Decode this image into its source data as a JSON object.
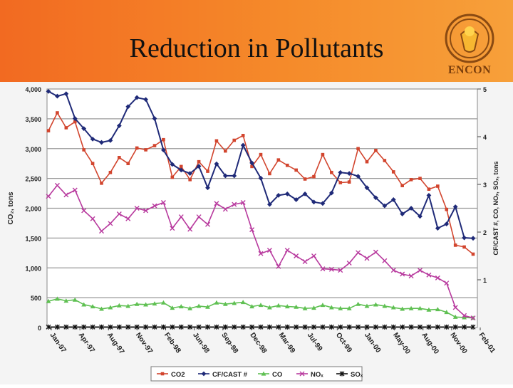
{
  "slide": {
    "title": "Reduction in Pollutants",
    "logo_text": "ENCON",
    "colors": {
      "banner": "#f47b25",
      "background": "#f4f4f4"
    }
  },
  "chart_data": {
    "type": "line",
    "title": "",
    "ylabel": "CO₂, tons",
    "y2label": "CF/CAST #, CO, NOₓ, SOₓ, tons",
    "ylim": [
      0,
      4000
    ],
    "y2lim": [
      0,
      5
    ],
    "yticks": [
      "0",
      "500",
      "1,000",
      "1,500",
      "2,000",
      "2,500",
      "3,000",
      "3,500",
      "4,000"
    ],
    "y2ticks": [
      "1",
      "2",
      "3",
      "4",
      "5"
    ],
    "grid": true,
    "legend": "bottom",
    "xtick_labels": [
      "Jan-97",
      "Apr-97",
      "Aug-97",
      "Nov-97",
      "Feb-98",
      "Jun-98",
      "Sep-98",
      "Dec-98",
      "Mar-99",
      "Jul-99",
      "Oct-99",
      "Jan-00",
      "May-00",
      "Aug-00",
      "Nov-00",
      "Feb-01"
    ],
    "series": [
      {
        "name": "CO2",
        "axis": "left",
        "color": "#d2452e",
        "marker": "square",
        "values": [
          3300,
          3600,
          3350,
          3450,
          2980,
          2750,
          2420,
          2600,
          2850,
          2750,
          3010,
          2980,
          3050,
          3150,
          2520,
          2700,
          2480,
          2780,
          2620,
          3130,
          2960,
          3140,
          3220,
          2700,
          2900,
          2580,
          2810,
          2720,
          2640,
          2490,
          2530,
          2900,
          2600,
          2430,
          2440,
          3000,
          2780,
          2970,
          2800,
          2610,
          2380,
          2480,
          2500,
          2320,
          2370,
          1980,
          1380,
          1350,
          1230
        ]
      },
      {
        "name": "CF/CAST #",
        "axis": "right",
        "color": "#1f2a78",
        "marker": "diamond",
        "values": [
          4.95,
          4.85,
          4.9,
          4.38,
          4.17,
          3.95,
          3.88,
          3.92,
          4.23,
          4.63,
          4.82,
          4.78,
          4.38,
          3.72,
          3.42,
          3.3,
          3.23,
          3.38,
          2.93,
          3.43,
          3.18,
          3.18,
          3.82,
          3.45,
          3.13,
          2.58,
          2.77,
          2.8,
          2.68,
          2.8,
          2.63,
          2.6,
          2.82,
          3.25,
          3.23,
          3.17,
          2.93,
          2.72,
          2.55,
          2.68,
          2.38,
          2.5,
          2.33,
          2.77,
          2.08,
          2.17,
          2.53,
          1.88,
          1.87
        ]
      },
      {
        "name": "CO",
        "axis": "right",
        "color": "#5fc052",
        "marker": "triangle",
        "values": [
          0.55,
          0.6,
          0.56,
          0.58,
          0.48,
          0.44,
          0.39,
          0.42,
          0.46,
          0.45,
          0.49,
          0.48,
          0.5,
          0.52,
          0.41,
          0.44,
          0.4,
          0.45,
          0.43,
          0.52,
          0.49,
          0.51,
          0.53,
          0.44,
          0.47,
          0.42,
          0.46,
          0.44,
          0.43,
          0.4,
          0.41,
          0.47,
          0.42,
          0.4,
          0.4,
          0.49,
          0.45,
          0.48,
          0.45,
          0.42,
          0.39,
          0.4,
          0.4,
          0.37,
          0.38,
          0.32,
          0.22,
          0.21,
          0.2
        ]
      },
      {
        "name": "NOₓ",
        "axis": "right",
        "color": "#b83a9e",
        "marker": "x",
        "values": [
          2.75,
          2.98,
          2.78,
          2.88,
          2.45,
          2.28,
          2.02,
          2.18,
          2.38,
          2.28,
          2.5,
          2.45,
          2.55,
          2.62,
          2.08,
          2.32,
          2.06,
          2.32,
          2.16,
          2.6,
          2.48,
          2.58,
          2.62,
          2.05,
          1.55,
          1.62,
          1.28,
          1.62,
          1.5,
          1.38,
          1.5,
          1.23,
          1.22,
          1.2,
          1.35,
          1.57,
          1.45,
          1.58,
          1.4,
          1.2,
          1.12,
          1.08,
          1.2,
          1.1,
          1.04,
          0.93,
          0.42,
          0.25,
          0.2
        ]
      },
      {
        "name": "SOₓ",
        "axis": "right",
        "color": "#111111",
        "marker": "star",
        "values": [
          0.01,
          0.01,
          0.01,
          0.01,
          0.01,
          0.01,
          0.01,
          0.01,
          0.01,
          0.01,
          0.01,
          0.01,
          0.01,
          0.01,
          0.01,
          0.01,
          0.01,
          0.01,
          0.01,
          0.01,
          0.01,
          0.01,
          0.01,
          0.01,
          0.01,
          0.01,
          0.01,
          0.01,
          0.01,
          0.01,
          0.01,
          0.01,
          0.01,
          0.01,
          0.01,
          0.01,
          0.01,
          0.01,
          0.01,
          0.01,
          0.01,
          0.01,
          0.01,
          0.01,
          0.01,
          0.01,
          0.01,
          0.01,
          0.01
        ]
      }
    ]
  }
}
